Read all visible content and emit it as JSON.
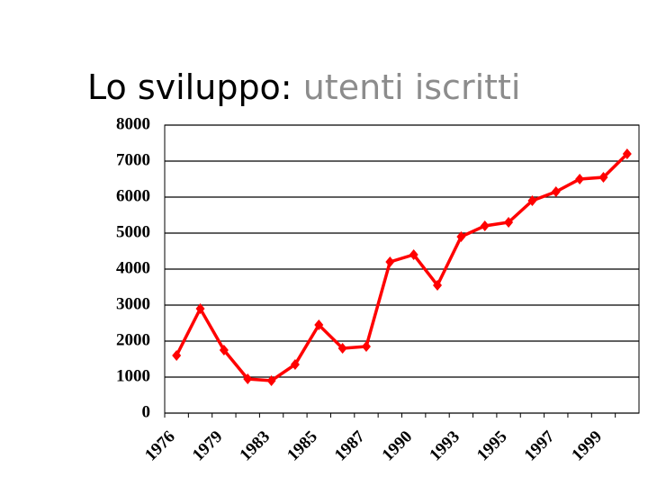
{
  "chart_data": {
    "type": "line",
    "title": [
      "Lo sviluppo:",
      "utenti iscritti"
    ],
    "categories": [
      "1976",
      null,
      "1979",
      null,
      "1983",
      null,
      "1985",
      null,
      "1987",
      null,
      "1990",
      null,
      "1993",
      null,
      "1995",
      null,
      "1997",
      null,
      "1999",
      null
    ],
    "series": [
      {
        "name": "utenti iscritti",
        "color": "#ff0000",
        "values": [
          1600,
          2900,
          1750,
          950,
          900,
          1350,
          2450,
          1800,
          1850,
          4200,
          4400,
          3550,
          4900,
          5200,
          5300,
          5900,
          6150,
          6500,
          6550,
          7200
        ]
      }
    ],
    "ylim": [
      0,
      8000
    ],
    "yticks": [
      0,
      1000,
      2000,
      3000,
      4000,
      5000,
      6000,
      7000,
      8000
    ],
    "grid": true
  }
}
